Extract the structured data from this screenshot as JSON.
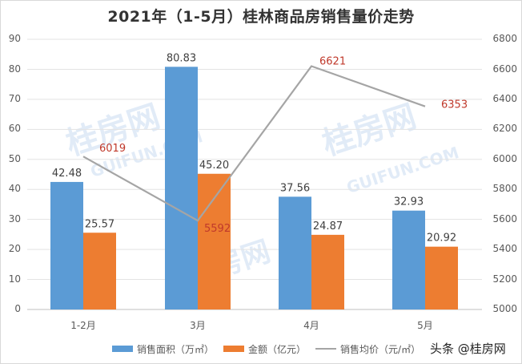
{
  "chart_data": {
    "type": "bar",
    "title": "2021年（1-5月）桂林商品房销售量价走势",
    "categories": [
      "1-2月",
      "3月",
      "4月",
      "5月"
    ],
    "series": [
      {
        "name": "销售面积（万㎡）",
        "type": "bar",
        "axis": "left",
        "color": "#5b9bd5",
        "values": [
          42.48,
          80.83,
          37.56,
          32.93
        ]
      },
      {
        "name": "金额（亿元）",
        "type": "bar",
        "axis": "left",
        "color": "#ed7d31",
        "values": [
          25.57,
          45.2,
          24.87,
          20.92
        ]
      },
      {
        "name": "销售均价（元/㎡）",
        "type": "line",
        "axis": "right",
        "color": "#a5a5a5",
        "values": [
          6019,
          5592,
          6621,
          6353
        ]
      }
    ],
    "data_labels": {
      "bars_area": [
        "42.48",
        "80.83",
        "37.56",
        "32.93"
      ],
      "bars_amount": [
        "25.57",
        "45.20",
        "24.87",
        "20.92"
      ],
      "line_price": [
        "6019",
        "5592",
        "6621",
        "6353"
      ]
    },
    "xlabel": "",
    "ylabel": "",
    "ylim": [
      0,
      90
    ],
    "y2lim": [
      5000,
      6800
    ],
    "yticks": [
      0,
      10,
      20,
      30,
      40,
      50,
      60,
      70,
      80,
      90
    ],
    "y2ticks": [
      5000,
      5200,
      5400,
      5600,
      5800,
      6000,
      6200,
      6400,
      6600,
      6800
    ],
    "grid": true,
    "legend_position": "bottom"
  },
  "legend": {
    "area": "销售面积（万㎡）",
    "amount": "金额（亿元）",
    "price": "销售均价（元/㎡）"
  },
  "credit": "头条 @桂房网",
  "watermark": {
    "text_cn": "桂房网",
    "text_en": "GUIFUN.COM"
  },
  "colors": {
    "area": "#5b9bd5",
    "amount": "#ed7d31",
    "price": "#a5a5a5",
    "price_label": "#c0392b"
  }
}
